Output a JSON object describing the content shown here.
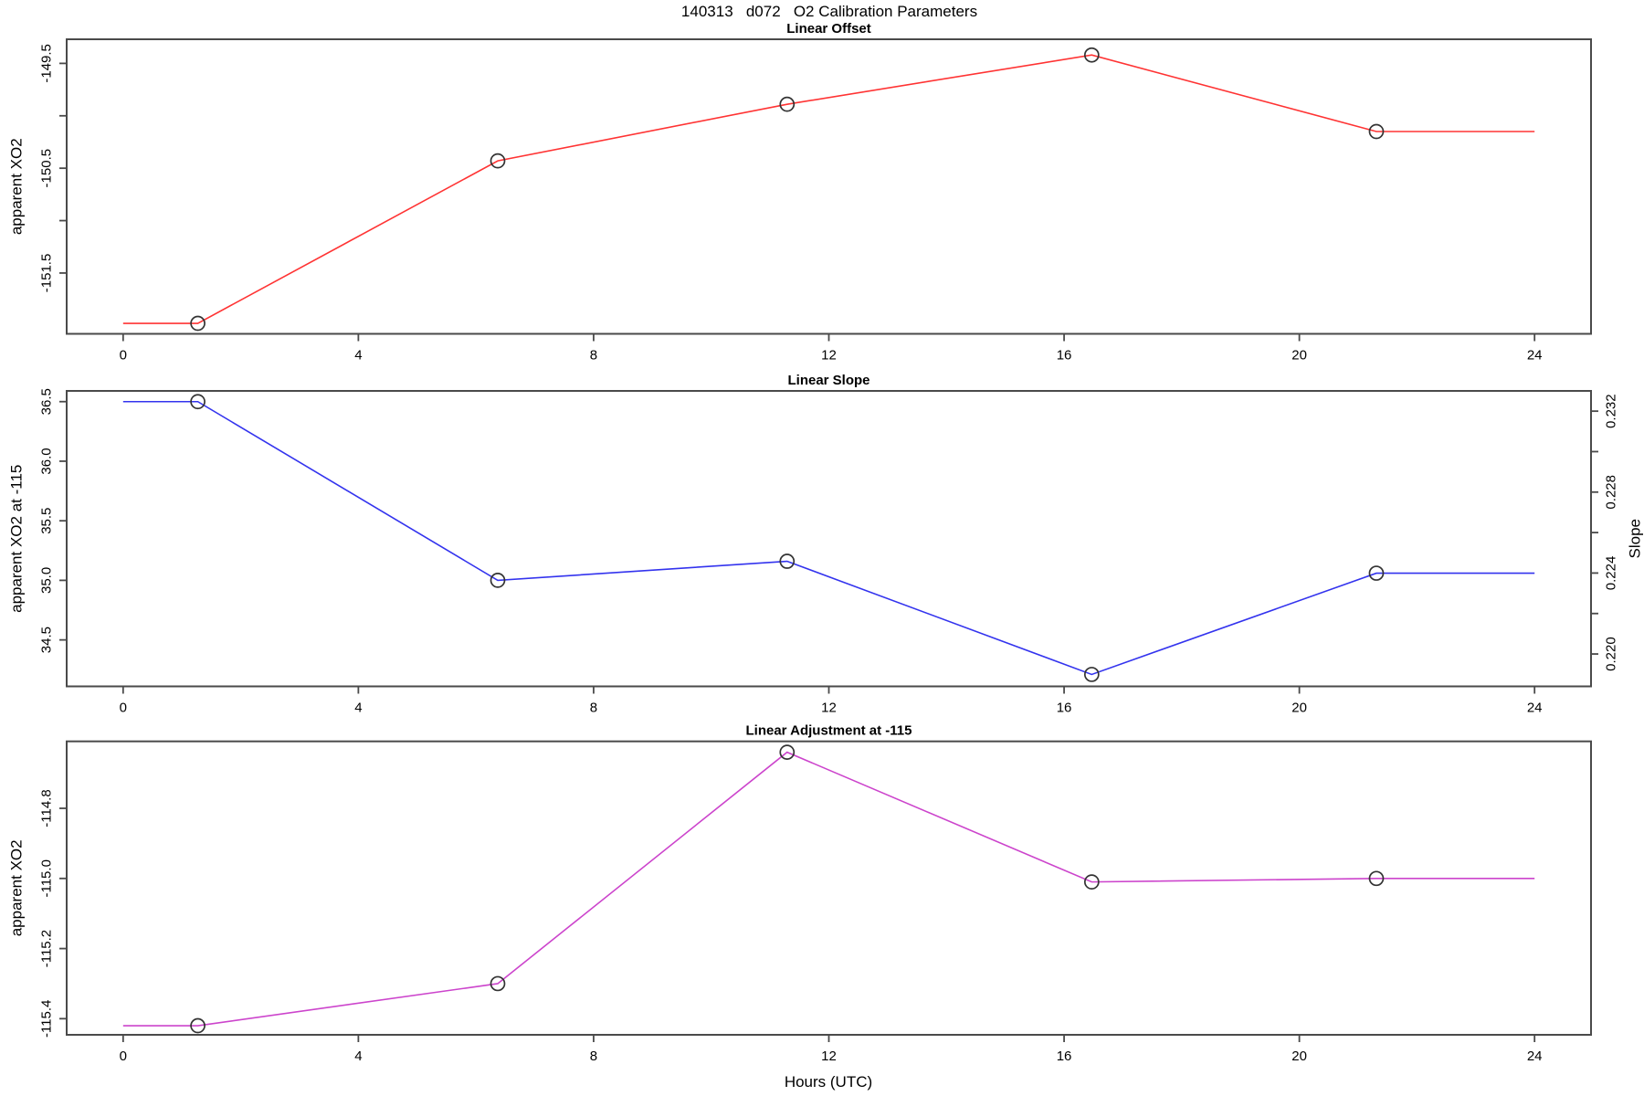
{
  "main_title": "140313   d072   O2 Calibration Parameters",
  "xlabel": "Hours (UTC)",
  "measurement_hours": [
    1.27,
    6.37,
    11.29,
    16.47,
    21.31
  ],
  "colors": {
    "offset_line": "#ff3333",
    "slope_line": "#3333ee",
    "adjustment_line": "#cc44cc",
    "marker_stroke": "#333333",
    "axis": "#4a4a4a",
    "text": "#000000"
  },
  "chart_data": [
    {
      "type": "line",
      "title": "Linear Offset",
      "ylabel": "apparent XO2",
      "line_color": "#ff3333",
      "xlim": [
        -0.96,
        24.96
      ],
      "ylim": [
        -152.08,
        -149.27
      ],
      "xticks": {
        "values": [
          0,
          4,
          8,
          12,
          16,
          20,
          24
        ],
        "labels": [
          "0",
          "4",
          "8",
          "12",
          "16",
          "20",
          "24"
        ]
      },
      "yticks": {
        "values": [
          -149.5,
          -150,
          -150.5,
          -151,
          -151.5
        ],
        "labels": [
          "-149.5",
          "",
          "-150.5",
          "",
          "-151.5"
        ]
      },
      "points": {
        "x": [
          1.27,
          6.37,
          11.29,
          16.47,
          21.31
        ],
        "y": [
          -151.98,
          -150.43,
          -149.89,
          -149.42,
          -150.15
        ]
      },
      "line": {
        "x": [
          0,
          1.27,
          6.37,
          11.29,
          16.47,
          21.31,
          24
        ],
        "y": [
          -151.98,
          -151.98,
          -150.43,
          -149.89,
          -149.42,
          -150.15,
          -150.15
        ]
      }
    },
    {
      "type": "line",
      "title": "Linear Slope",
      "ylabel": "apparent XO2 at -115",
      "line_color": "#3333ee",
      "xlim": [
        -0.96,
        24.96
      ],
      "ylim": [
        34.11,
        36.59
      ],
      "xticks": {
        "values": [
          0,
          4,
          8,
          12,
          16,
          20,
          24
        ],
        "labels": [
          "0",
          "4",
          "8",
          "12",
          "16",
          "20",
          "24"
        ]
      },
      "yticks": {
        "values": [
          36.5,
          36,
          35.5,
          35,
          34.5
        ],
        "labels": [
          "36.5",
          "36.0",
          "35.5",
          "35.0",
          "34.5"
        ]
      },
      "right_axis": {
        "ylabel": "Slope",
        "ylim": [
          0.2184,
          0.233
        ],
        "ticks": {
          "values": [
            0.232,
            0.23,
            0.228,
            0.226,
            0.224,
            0.222,
            0.22
          ],
          "labels": [
            "0.232",
            "",
            "0.228",
            "",
            "0.224",
            "",
            "0.220"
          ]
        }
      },
      "points": {
        "x": [
          1.27,
          6.37,
          11.29,
          16.47,
          21.31
        ],
        "y": [
          36.5,
          35.0,
          35.16,
          34.21,
          35.06
        ]
      },
      "line": {
        "x": [
          0,
          1.27,
          6.37,
          11.29,
          16.47,
          21.31,
          24
        ],
        "y": [
          36.5,
          36.5,
          35.0,
          35.16,
          34.21,
          35.06,
          35.06
        ]
      }
    },
    {
      "type": "line",
      "title": "Linear Adjustment at -115",
      "ylabel": "apparent XO2",
      "line_color": "#cc44cc",
      "xlim": [
        -0.96,
        24.96
      ],
      "ylim": [
        -115.446,
        -114.609
      ],
      "xticks": {
        "values": [
          0,
          4,
          8,
          12,
          16,
          20,
          24
        ],
        "labels": [
          "0",
          "4",
          "8",
          "12",
          "16",
          "20",
          "24"
        ]
      },
      "yticks": {
        "values": [
          -114.8,
          -115,
          -115.2,
          -115.4
        ],
        "labels": [
          "-114.8",
          "-115.0",
          "-115.2",
          "-115.4"
        ]
      },
      "points": {
        "x": [
          1.27,
          6.37,
          11.29,
          16.47,
          21.31
        ],
        "y": [
          -115.42,
          -115.3,
          -114.64,
          -115.01,
          -115.0
        ]
      },
      "line": {
        "x": [
          0,
          1.27,
          6.37,
          11.29,
          16.47,
          21.31,
          24
        ],
        "y": [
          -115.42,
          -115.42,
          -115.3,
          -114.64,
          -115.01,
          -115.0,
          -115.0
        ]
      }
    }
  ]
}
